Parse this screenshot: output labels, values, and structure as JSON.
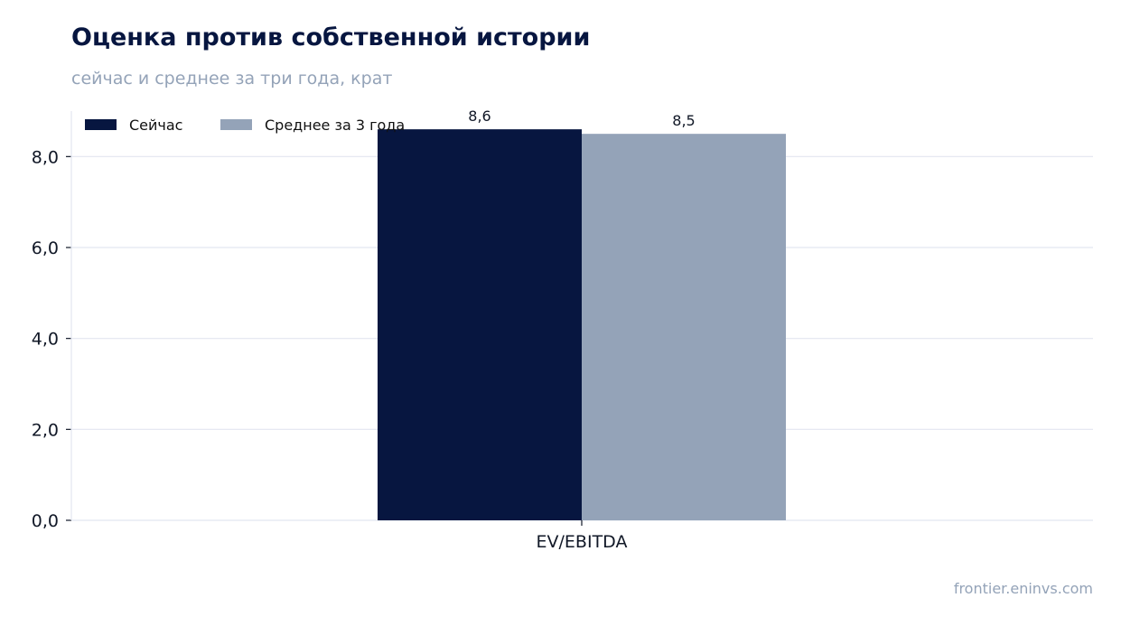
{
  "header": {
    "title": "Оценка против собственной истории",
    "subtitle": "сейчас и среднее за три года, крат"
  },
  "source": "frontier.eninvs.com",
  "colors": {
    "now": "#071640",
    "avg3y": "#94a3b8",
    "grid": "#e2e6f0",
    "axis": "#111827"
  },
  "chart_data": {
    "type": "bar",
    "categories": [
      "EV/EBITDA"
    ],
    "series": [
      {
        "name": "Сейчас",
        "values": [
          8.6
        ],
        "labels": [
          "8,6"
        ],
        "color": "#071640"
      },
      {
        "name": "Среднее за 3 года",
        "values": [
          8.5
        ],
        "labels": [
          "8,5"
        ],
        "color": "#94a3b8"
      }
    ],
    "yticks": [
      "0,0",
      "2,0",
      "4,0",
      "6,0",
      "8,0"
    ],
    "ylim": [
      0,
      9
    ],
    "grid": true,
    "legend": "top-left"
  }
}
